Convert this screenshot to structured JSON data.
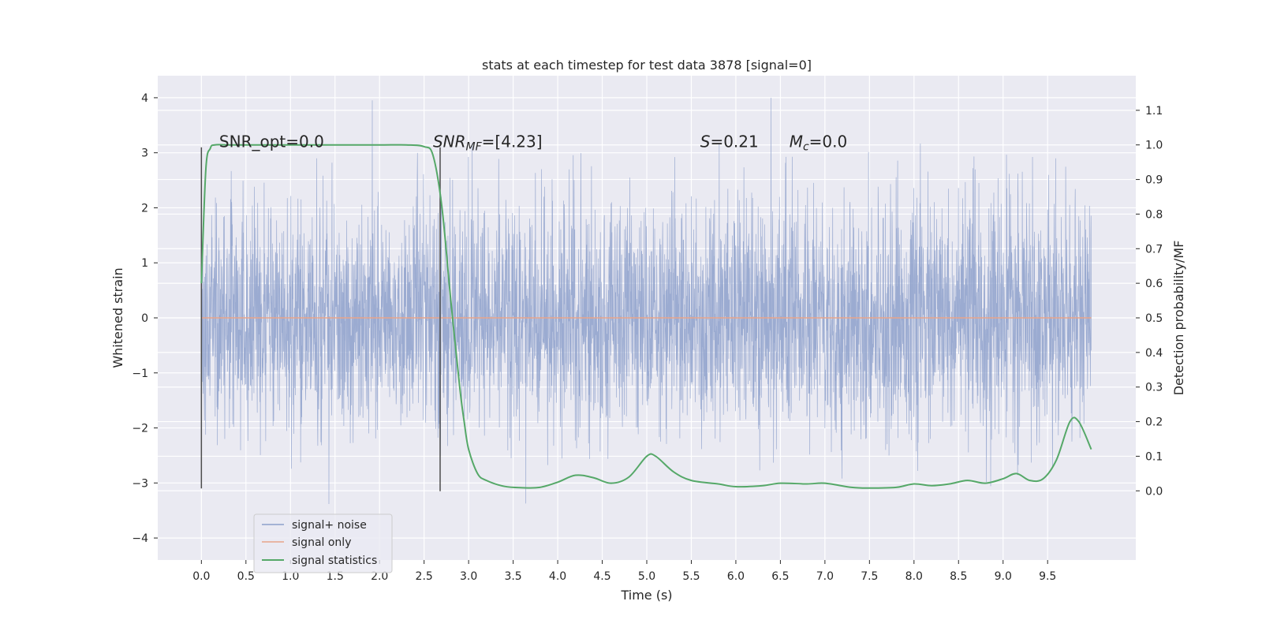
{
  "chart_data": {
    "type": "line",
    "title": "stats at each timestep for test data 3878 [signal=0]",
    "xlabel": "Time (s)",
    "ylabel_left": "Whitened strain",
    "ylabel_right": "Detection probability/MF",
    "xlim": [
      -0.49,
      10.49
    ],
    "ylim_left": [
      -4.4,
      4.4
    ],
    "ylim_right": [
      -0.2,
      1.2
    ],
    "x_ticks": [
      "0.0",
      "0.5",
      "1.0",
      "1.5",
      "2.0",
      "2.5",
      "3.0",
      "3.5",
      "4.0",
      "4.5",
      "5.0",
      "5.5",
      "6.0",
      "6.5",
      "7.0",
      "7.5",
      "8.0",
      "8.5",
      "9.0",
      "9.5"
    ],
    "x_tick_values": [
      0,
      0.5,
      1.0,
      1.5,
      2.0,
      2.5,
      3.0,
      3.5,
      4.0,
      4.5,
      5.0,
      5.5,
      6.0,
      6.5,
      7.0,
      7.5,
      8.0,
      8.5,
      9.0,
      9.5
    ],
    "y_left_ticks": [
      "4",
      "3",
      "2",
      "1",
      "0",
      "−1",
      "−2",
      "−3",
      "−4"
    ],
    "y_left_tick_values": [
      4,
      3,
      2,
      1,
      0,
      -1,
      -2,
      -3,
      -4
    ],
    "y_right_ticks": [
      "1.1",
      "1.0",
      "0.9",
      "0.8",
      "0.7",
      "0.6",
      "0.5",
      "0.4",
      "0.3",
      "0.2",
      "0.1",
      "0.0"
    ],
    "y_right_tick_values": [
      1.1,
      1.0,
      0.9,
      0.8,
      0.7,
      0.6,
      0.5,
      0.4,
      0.3,
      0.2,
      0.1,
      0.0
    ],
    "grid": true,
    "legend_position": "lower-left",
    "series": [
      {
        "name": "signal+ noise",
        "color": "#8da0cb",
        "axis": "left",
        "x_range": [
          0,
          9.99
        ],
        "amplitude_range": [
          -3.9,
          4.0
        ]
      },
      {
        "name": "signal only",
        "color": "#e8a48a",
        "axis": "left",
        "x": [
          0,
          9.99
        ],
        "y": [
          0,
          0
        ]
      },
      {
        "name": "signal statistics",
        "color": "#55a868",
        "axis": "right",
        "x": [
          0.0,
          0.05,
          0.1,
          0.15,
          0.3,
          0.6,
          1.0,
          1.5,
          2.0,
          2.3,
          2.5,
          2.6,
          2.7,
          2.8,
          2.9,
          2.95,
          3.0,
          3.1,
          3.2,
          3.4,
          3.6,
          3.8,
          4.0,
          4.2,
          4.4,
          4.6,
          4.8,
          5.0,
          5.1,
          5.3,
          5.5,
          5.8,
          6.0,
          6.3,
          6.5,
          6.8,
          7.0,
          7.3,
          7.5,
          7.8,
          8.0,
          8.2,
          8.4,
          8.6,
          8.8,
          9.0,
          9.15,
          9.3,
          9.45,
          9.6,
          9.75,
          9.85,
          9.99
        ],
        "y": [
          0.6,
          0.93,
          0.99,
          1.0,
          1.0,
          1.0,
          1.0,
          1.0,
          1.0,
          1.0,
          0.995,
          0.97,
          0.82,
          0.55,
          0.3,
          0.2,
          0.12,
          0.05,
          0.03,
          0.013,
          0.009,
          0.01,
          0.025,
          0.045,
          0.038,
          0.022,
          0.04,
          0.1,
          0.1,
          0.055,
          0.03,
          0.02,
          0.012,
          0.015,
          0.022,
          0.02,
          0.022,
          0.01,
          0.008,
          0.01,
          0.02,
          0.015,
          0.02,
          0.03,
          0.022,
          0.035,
          0.05,
          0.03,
          0.035,
          0.09,
          0.2,
          0.2,
          0.12
        ]
      }
    ],
    "vertical_lines": [
      {
        "x": 0.0,
        "y_min": -3.1,
        "y_max": 3.1,
        "color": "#4c4c4c"
      },
      {
        "x": 2.68,
        "y_min": -3.15,
        "y_max": 3.1,
        "color": "#4c4c4c"
      }
    ],
    "annotations": [
      {
        "id": "snr-opt",
        "text": "SNR_opt=0.0",
        "x": 0.2,
        "y": 3.1
      },
      {
        "id": "snr-mf",
        "prefix": "SNR",
        "sub": "MF",
        "suffix": "=[4.23]",
        "x": 2.6,
        "y": 3.1
      },
      {
        "id": "s-stat",
        "prefix": "S",
        "suffix": "=0.21",
        "x": 5.6,
        "y": 3.1
      },
      {
        "id": "mc",
        "prefix": "M",
        "sub": "c",
        "suffix": "=0.0",
        "x": 6.6,
        "y": 3.1
      }
    ]
  }
}
